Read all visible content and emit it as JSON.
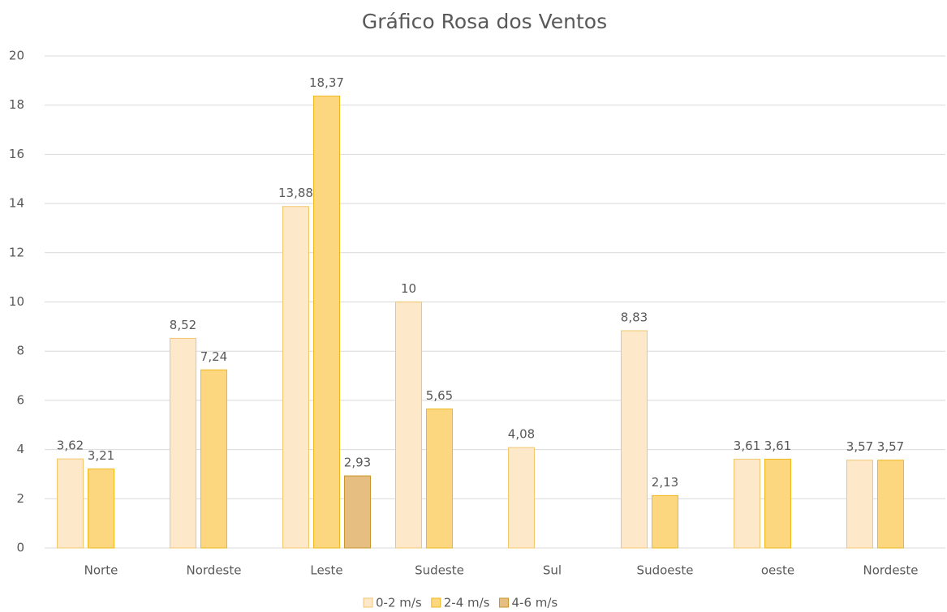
{
  "chart_data": {
    "type": "bar",
    "title": "Gráfico Rosa dos Ventos",
    "categories": [
      "Norte",
      "Nordeste",
      "Leste",
      "Sudeste",
      "Sul",
      "Sudoeste",
      "oeste",
      "Nordeste"
    ],
    "series": [
      {
        "name": "0-2 m/s",
        "color": "#fde9c9",
        "values": [
          3.62,
          8.52,
          13.88,
          10,
          4.08,
          8.83,
          3.61,
          3.57
        ],
        "value_labels": [
          "3,62",
          "8,52",
          "13,88",
          "10",
          "4,08",
          "8,83",
          "3,61",
          "3,57"
        ]
      },
      {
        "name": "2-4 m/s",
        "color": "#fdd680",
        "values": [
          3.21,
          7.24,
          18.37,
          5.65,
          null,
          2.13,
          3.61,
          3.57
        ],
        "value_labels": [
          "3,21",
          "7,24",
          "18,37",
          "5,65",
          null,
          "2,13",
          "3,61",
          "3,57"
        ]
      },
      {
        "name": "4-6 m/s",
        "color": "#e6be82",
        "values": [
          null,
          null,
          2.93,
          null,
          null,
          null,
          null,
          null
        ],
        "value_labels": [
          null,
          null,
          "2,93",
          null,
          null,
          null,
          null,
          null
        ]
      }
    ],
    "ylim": [
      0,
      20
    ],
    "yticks": [
      0,
      2,
      4,
      6,
      8,
      10,
      12,
      14,
      16,
      18,
      20
    ],
    "grid": true,
    "legend": "bottom"
  }
}
